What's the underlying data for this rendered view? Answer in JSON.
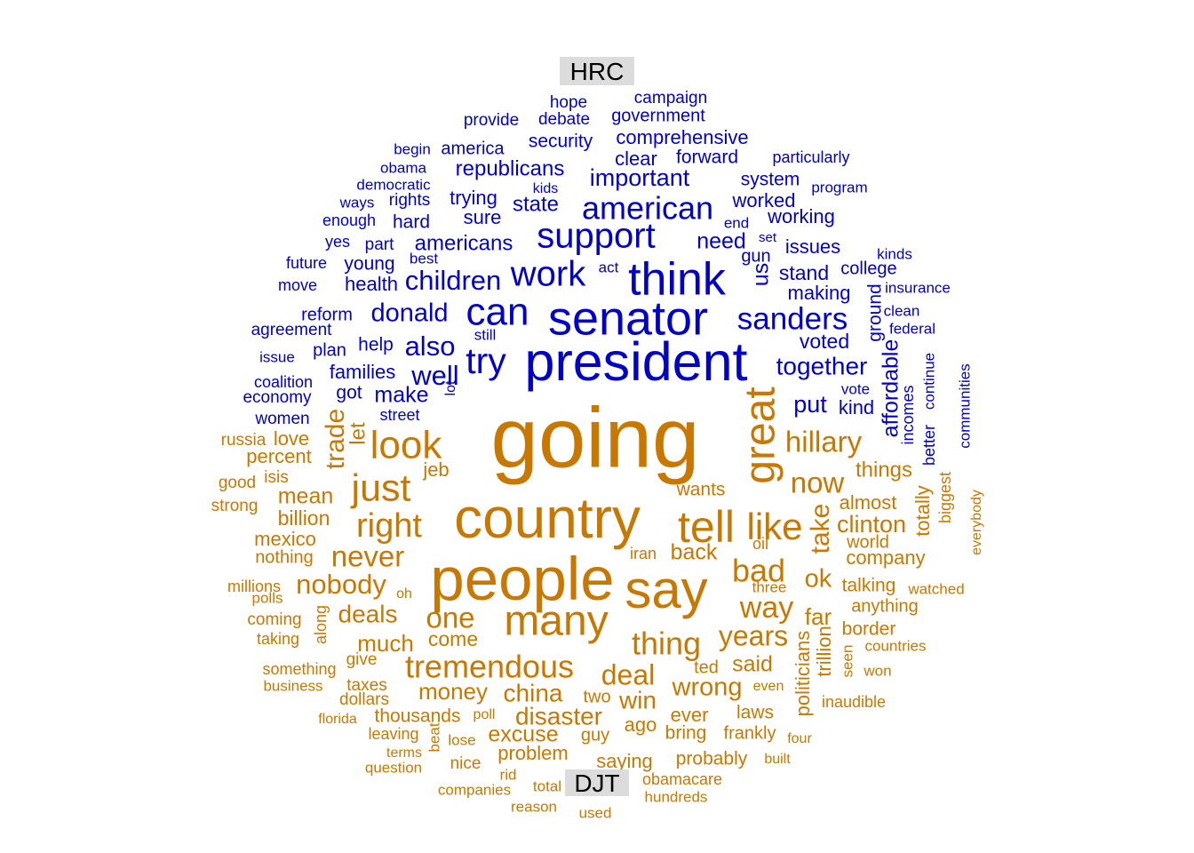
{
  "labels": {
    "top": "HRC",
    "bottom": "DJT"
  },
  "colors": {
    "hrc": "#0000c8",
    "djt": "#c87800"
  },
  "words": {
    "hrc": [
      "hope",
      "campaign",
      "provide",
      "debate",
      "government",
      "security",
      "comprehensive",
      "begin",
      "america",
      "clear",
      "forward",
      "particularly",
      "obama",
      "republicans",
      "important",
      "system",
      "democratic",
      "kids",
      "program",
      "ways",
      "rights",
      "trying",
      "state",
      "worked",
      "american",
      "enough",
      "hard",
      "sure",
      "end",
      "working",
      "support",
      "need",
      "set",
      "yes",
      "part",
      "americans",
      "gun",
      "issues",
      "kinds",
      "best",
      "future",
      "young",
      "work",
      "think",
      "act",
      "us",
      "stand",
      "college",
      "insurance",
      "move",
      "health",
      "children",
      "making",
      "senator",
      "reform",
      "donald",
      "can",
      "sanders",
      "ground",
      "clean",
      "agreement",
      "still",
      "federal",
      "plan",
      "help",
      "also",
      "voted",
      "issue",
      "try",
      "president",
      "together",
      "affordable",
      "continue",
      "communities",
      "families",
      "well",
      "coalition",
      "lot",
      "vote",
      "economy",
      "got",
      "make",
      "put",
      "incomes",
      "better",
      "kind",
      "women",
      "street"
    ],
    "djt": [
      "going",
      "country",
      "people",
      "say",
      "tell",
      "great",
      "like",
      "hillary",
      "russia",
      "love",
      "trade",
      "let",
      "look",
      "just",
      "now",
      "things",
      "percent",
      "jeb",
      "totally",
      "biggest",
      "good",
      "isis",
      "mean",
      "wants",
      "take",
      "almost",
      "strong",
      "billion",
      "right",
      "clinton",
      "everybody",
      "mexico",
      "oil",
      "world",
      "nothing",
      "never",
      "iran",
      "back",
      "company",
      "bad",
      "millions",
      "nobody",
      "ok",
      "polls",
      "oh",
      "watched",
      "three",
      "talking",
      "coming",
      "along",
      "way",
      "deals",
      "anything",
      "one",
      "many",
      "far",
      "taking",
      "border",
      "much",
      "come",
      "years",
      "give",
      "something",
      "thing",
      "trillion",
      "countries",
      "seen",
      "tremendous",
      "said",
      "ted",
      "won",
      "deal",
      "business",
      "money",
      "china",
      "wrong",
      "even",
      "taxes",
      "two",
      "win",
      "inaudible",
      "dollars",
      "florida",
      "thousands",
      "poll",
      "disaster",
      "ever",
      "laws",
      "politicians",
      "leaving",
      "lose",
      "excuse",
      "guy",
      "ago",
      "bring",
      "frankly",
      "four",
      "terms",
      "beat",
      "problem",
      "question",
      "nice",
      "saying",
      "probably",
      "built",
      "rid",
      "obamacare",
      "companies",
      "total",
      "hundreds",
      "reason",
      "used"
    ]
  }
}
